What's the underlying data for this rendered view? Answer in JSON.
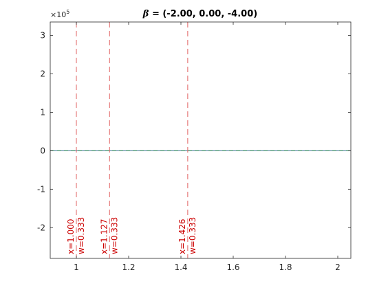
{
  "chart_data": {
    "type": "line",
    "title_prefix": "β",
    "title_rest": " = (-2.00, 0.00, -4.00)",
    "xlabel": "",
    "ylabel": "",
    "xlim": [
      0.9,
      2.05
    ],
    "ylim": [
      -280000,
      335000
    ],
    "exponent_label": "×10",
    "exponent_power": "5",
    "grid": false,
    "x_ticks": [
      {
        "value": 1.0,
        "label": "1"
      },
      {
        "value": 1.2,
        "label": "1.2"
      },
      {
        "value": 1.4,
        "label": "1.4"
      },
      {
        "value": 1.6,
        "label": "1.6"
      },
      {
        "value": 1.8,
        "label": "1.8"
      },
      {
        "value": 2.0,
        "label": "2"
      }
    ],
    "y_ticks": [
      {
        "value": 300000,
        "label": "3"
      },
      {
        "value": 200000,
        "label": "2"
      },
      {
        "value": 100000,
        "label": "1"
      },
      {
        "value": 0,
        "label": "0"
      },
      {
        "value": -100000,
        "label": "-1"
      },
      {
        "value": -200000,
        "label": "-2"
      }
    ],
    "series": [
      {
        "x": [
          0.9,
          2.05
        ],
        "y": [
          0,
          0
        ],
        "color": "#3a6f8f"
      },
      {
        "x": [
          0.9,
          2.05
        ],
        "y": [
          0,
          0
        ],
        "color": "#2e8b57",
        "dash": true
      }
    ],
    "nodes": [
      {
        "x": 1.0,
        "x_label": "x=1.000",
        "w_label": "w=0.333"
      },
      {
        "x": 1.127,
        "x_label": "x=1.127",
        "w_label": "w=0.333"
      },
      {
        "x": 1.426,
        "x_label": "x=1.426",
        "w_label": "w=0.333"
      }
    ],
    "node_color": "#e06060",
    "node_text_color": "#cc0000"
  }
}
